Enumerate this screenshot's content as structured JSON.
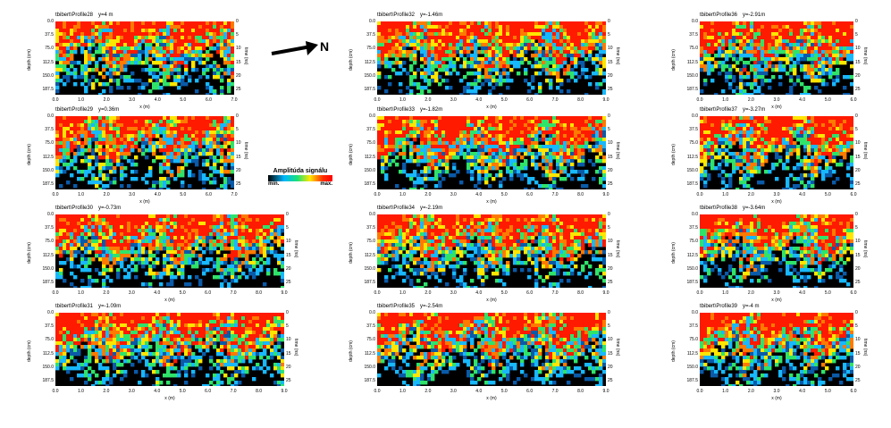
{
  "legend": {
    "title": "Amplitúda signálu",
    "min": "min.",
    "max": "max."
  },
  "north": {
    "label": "N"
  },
  "axis": {
    "xname": "x (m)",
    "depth_name": "depth (cm)",
    "time_name": "time (ns)",
    "depth_ticks": [
      "0.0",
      "37.5",
      "75.0",
      "112.5",
      "150.0",
      "187.5"
    ],
    "time_ticks": [
      "0",
      "5",
      "10",
      "15",
      "20",
      "25"
    ]
  },
  "panels": [
    {
      "id": "p28",
      "name": "tbibert\\Profile28",
      "y": "y=4 m",
      "xmax": 7
    },
    {
      "id": "p29",
      "name": "tbibert\\Profile29",
      "y": "y=0.36m",
      "xmax": 7
    },
    {
      "id": "p30",
      "name": "tbibert\\Profile30",
      "y": "y=-0.73m",
      "xmax": 9
    },
    {
      "id": "p31",
      "name": "tbibert\\Profile31",
      "y": "y=-1.09m",
      "xmax": 9
    },
    {
      "id": "p32",
      "name": "tbibert\\Profile32",
      "y": "y=-1.46m",
      "xmax": 9
    },
    {
      "id": "p33",
      "name": "tbibert\\Profile33",
      "y": "y=-1.82m",
      "xmax": 9
    },
    {
      "id": "p34",
      "name": "tbibert\\Profile34",
      "y": "y=-2.19m",
      "xmax": 9
    },
    {
      "id": "p35",
      "name": "tbibert\\Profile35",
      "y": "y=-2.54m",
      "xmax": 9
    },
    {
      "id": "p36",
      "name": "tbibert\\Profile36",
      "y": "y=-2.91m",
      "xmax": 6
    },
    {
      "id": "p37",
      "name": "tbibert\\Profile37",
      "y": "y=-3.27m",
      "xmax": 6
    },
    {
      "id": "p38",
      "name": "tbibert\\Profile38",
      "y": "y=-3.64m",
      "xmax": 6
    },
    {
      "id": "p39",
      "name": "tbibert\\Profile39",
      "y": "y=-4 m",
      "xmax": 6
    }
  ]
}
